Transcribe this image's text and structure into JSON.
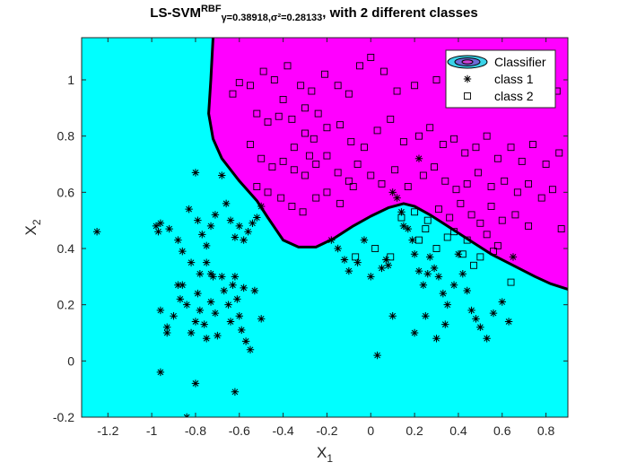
{
  "figure": {
    "title_main": "LS-SVM",
    "title_sup": "RBF",
    "title_sub": "γ=0.38918,σ²=0.28133",
    "title_rest": ", with 2 different classes"
  },
  "colors": {
    "region_class1": "#00ffff",
    "region_class2": "#ff00ff",
    "boundary": "#000000"
  },
  "chart_data": {
    "type": "scatter",
    "xlabel": "X",
    "xlabel_sub": "1",
    "ylabel": "X",
    "ylabel_sub": "2",
    "xlim": [
      -1.32,
      0.9
    ],
    "ylim": [
      -0.2,
      1.15
    ],
    "xticks": [
      -1.2,
      -1,
      -0.8,
      -0.6,
      -0.4,
      -0.2,
      0,
      0.2,
      0.4,
      0.6,
      0.8
    ],
    "yticks": [
      -0.2,
      0,
      0.2,
      0.4,
      0.6,
      0.8,
      1
    ],
    "xtick_labels": [
      "-1.2",
      "-1",
      "-0.8",
      "-0.6",
      "-0.4",
      "-0.2",
      "0",
      "0.2",
      "0.4",
      "0.6",
      "0.8"
    ],
    "ytick_labels": [
      "-0.2",
      "0",
      "0.2",
      "0.4",
      "0.6",
      "0.8",
      "1"
    ],
    "legend": {
      "location": "top-right",
      "entries": [
        "Classifier",
        "class 1",
        "class 2"
      ]
    },
    "decision_boundary": [
      [
        -0.72,
        1.15
      ],
      [
        -0.73,
        1.0
      ],
      [
        -0.74,
        0.88
      ],
      [
        -0.72,
        0.79
      ],
      [
        -0.68,
        0.72
      ],
      [
        -0.6,
        0.64
      ],
      [
        -0.52,
        0.57
      ],
      [
        -0.47,
        0.51
      ],
      [
        -0.4,
        0.43
      ],
      [
        -0.33,
        0.405
      ],
      [
        -0.25,
        0.405
      ],
      [
        -0.17,
        0.435
      ],
      [
        -0.08,
        0.48
      ],
      [
        0.0,
        0.515
      ],
      [
        0.08,
        0.545
      ],
      [
        0.15,
        0.56
      ],
      [
        0.2,
        0.55
      ],
      [
        0.27,
        0.52
      ],
      [
        0.35,
        0.48
      ],
      [
        0.45,
        0.43
      ],
      [
        0.55,
        0.38
      ],
      [
        0.65,
        0.34
      ],
      [
        0.75,
        0.3
      ],
      [
        0.82,
        0.275
      ],
      [
        0.9,
        0.255
      ]
    ],
    "series": [
      {
        "name": "class 1",
        "marker": "asterisk",
        "points": [
          [
            -1.25,
            0.46
          ],
          [
            -0.98,
            0.48
          ],
          [
            -0.97,
            0.46
          ],
          [
            -0.96,
            0.49
          ],
          [
            -0.92,
            0.47
          ],
          [
            -0.88,
            0.43
          ],
          [
            -0.86,
            0.39
          ],
          [
            -0.83,
            0.54
          ],
          [
            -0.8,
            0.67
          ],
          [
            -0.79,
            0.5
          ],
          [
            -0.77,
            0.45
          ],
          [
            -0.75,
            0.41
          ],
          [
            -0.73,
            0.48
          ],
          [
            -0.71,
            0.52
          ],
          [
            -0.68,
            0.66
          ],
          [
            -0.66,
            0.56
          ],
          [
            -0.64,
            0.5
          ],
          [
            -0.62,
            0.44
          ],
          [
            -0.6,
            0.48
          ],
          [
            -0.58,
            0.43
          ],
          [
            -0.56,
            0.46
          ],
          [
            -0.54,
            0.49
          ],
          [
            -0.52,
            0.51
          ],
          [
            -0.5,
            0.55
          ],
          [
            -0.96,
            0.18
          ],
          [
            -0.93,
            0.12
          ],
          [
            -0.93,
            0.1
          ],
          [
            -0.9,
            0.16
          ],
          [
            -0.88,
            0.27
          ],
          [
            -0.87,
            0.22
          ],
          [
            -0.86,
            0.27
          ],
          [
            -0.84,
            0.2
          ],
          [
            -0.82,
            0.1
          ],
          [
            -0.8,
            0.14
          ],
          [
            -0.79,
            0.24
          ],
          [
            -0.78,
            0.18
          ],
          [
            -0.76,
            0.13
          ],
          [
            -0.75,
            0.08
          ],
          [
            -0.73,
            0.21
          ],
          [
            -0.72,
            0.3
          ],
          [
            -0.71,
            0.17
          ],
          [
            -0.7,
            0.09
          ],
          [
            -0.68,
            0.3
          ],
          [
            -0.67,
            0.25
          ],
          [
            -0.65,
            0.2
          ],
          [
            -0.64,
            0.14
          ],
          [
            -0.63,
            0.27
          ],
          [
            -0.62,
            0.3
          ],
          [
            -0.61,
            0.22
          ],
          [
            -0.6,
            0.16
          ],
          [
            -0.59,
            0.11
          ],
          [
            -0.58,
            0.26
          ],
          [
            -0.57,
            0.07
          ],
          [
            -0.55,
            0.04
          ],
          [
            -0.53,
            0.25
          ],
          [
            -0.5,
            0.15
          ],
          [
            -0.96,
            -0.04
          ],
          [
            -0.8,
            -0.08
          ],
          [
            -0.62,
            -0.11
          ],
          [
            -0.84,
            -0.2
          ],
          [
            -0.82,
            0.35
          ],
          [
            -0.78,
            0.31
          ],
          [
            -0.75,
            0.35
          ],
          [
            -0.73,
            0.31
          ],
          [
            -0.18,
            0.43
          ],
          [
            -0.15,
            0.4
          ],
          [
            -0.12,
            0.36
          ],
          [
            -0.1,
            0.32
          ],
          [
            -0.06,
            0.35
          ],
          [
            -0.03,
            0.43
          ],
          [
            0.0,
            0.3
          ],
          [
            0.03,
            0.02
          ],
          [
            0.05,
            0.33
          ],
          [
            0.08,
            0.34
          ],
          [
            0.07,
            0.36
          ],
          [
            0.1,
            0.6
          ],
          [
            0.12,
            0.58
          ],
          [
            0.14,
            0.53
          ],
          [
            0.15,
            0.48
          ],
          [
            0.17,
            0.47
          ],
          [
            0.19,
            0.43
          ],
          [
            0.2,
            0.38
          ],
          [
            0.22,
            0.32
          ],
          [
            0.24,
            0.27
          ],
          [
            0.26,
            0.31
          ],
          [
            0.27,
            0.37
          ],
          [
            0.29,
            0.33
          ],
          [
            0.31,
            0.3
          ],
          [
            0.33,
            0.24
          ],
          [
            0.35,
            0.2
          ],
          [
            0.38,
            0.27
          ],
          [
            0.4,
            0.38
          ],
          [
            0.42,
            0.31
          ],
          [
            0.44,
            0.25
          ],
          [
            0.46,
            0.18
          ],
          [
            0.48,
            0.15
          ],
          [
            0.5,
            0.12
          ],
          [
            0.53,
            0.08
          ],
          [
            0.56,
            0.17
          ],
          [
            0.6,
            0.21
          ],
          [
            0.63,
            0.14
          ],
          [
            0.65,
            0.37
          ],
          [
            0.2,
            0.1
          ],
          [
            0.1,
            0.16
          ],
          [
            0.3,
            0.08
          ],
          [
            0.34,
            0.13
          ],
          [
            0.25,
            0.16
          ],
          [
            0.22,
            0.72
          ]
        ]
      },
      {
        "name": "class 2",
        "marker": "square",
        "points": [
          [
            -0.6,
            0.99
          ],
          [
            -0.55,
            0.98
          ],
          [
            -0.49,
            1.03
          ],
          [
            -0.44,
            1.0
          ],
          [
            -0.38,
            1.05
          ],
          [
            -0.32,
            0.98
          ],
          [
            -0.27,
            0.96
          ],
          [
            -0.21,
            1.02
          ],
          [
            -0.15,
            0.98
          ],
          [
            -0.1,
            0.95
          ],
          [
            -0.05,
            1.05
          ],
          [
            0.0,
            1.08
          ],
          [
            0.06,
            1.03
          ],
          [
            0.12,
            0.96
          ],
          [
            0.2,
            0.98
          ],
          [
            0.3,
            1.0
          ],
          [
            0.4,
            1.05
          ],
          [
            0.48,
            1.06
          ],
          [
            0.55,
            1.02
          ],
          [
            0.62,
            0.96
          ],
          [
            0.7,
            0.99
          ],
          [
            0.78,
            0.94
          ],
          [
            0.85,
            0.96
          ],
          [
            -0.63,
            0.95
          ],
          [
            -0.52,
            0.88
          ],
          [
            -0.47,
            0.85
          ],
          [
            -0.42,
            0.87
          ],
          [
            -0.36,
            0.86
          ],
          [
            -0.3,
            0.81
          ],
          [
            -0.26,
            0.79
          ],
          [
            -0.2,
            0.83
          ],
          [
            -0.14,
            0.84
          ],
          [
            -0.09,
            0.78
          ],
          [
            -0.03,
            0.76
          ],
          [
            0.03,
            0.82
          ],
          [
            0.09,
            0.86
          ],
          [
            0.15,
            0.78
          ],
          [
            0.22,
            0.8
          ],
          [
            0.27,
            0.83
          ],
          [
            0.33,
            0.77
          ],
          [
            0.38,
            0.79
          ],
          [
            0.43,
            0.74
          ],
          [
            0.48,
            0.76
          ],
          [
            0.53,
            0.8
          ],
          [
            0.58,
            0.72
          ],
          [
            0.64,
            0.76
          ],
          [
            0.69,
            0.71
          ],
          [
            0.74,
            0.77
          ],
          [
            0.8,
            0.7
          ],
          [
            0.86,
            0.74
          ],
          [
            -0.55,
            0.77
          ],
          [
            -0.5,
            0.72
          ],
          [
            -0.45,
            0.69
          ],
          [
            -0.4,
            0.71
          ],
          [
            -0.35,
            0.68
          ],
          [
            -0.3,
            0.66
          ],
          [
            -0.25,
            0.7
          ],
          [
            -0.2,
            0.73
          ],
          [
            -0.15,
            0.67
          ],
          [
            -0.1,
            0.64
          ],
          [
            -0.06,
            0.7
          ],
          [
            0.0,
            0.66
          ],
          [
            0.05,
            0.63
          ],
          [
            0.11,
            0.68
          ],
          [
            0.17,
            0.62
          ],
          [
            0.24,
            0.66
          ],
          [
            0.29,
            0.69
          ],
          [
            0.34,
            0.64
          ],
          [
            0.39,
            0.61
          ],
          [
            0.44,
            0.63
          ],
          [
            0.49,
            0.67
          ],
          [
            0.55,
            0.62
          ],
          [
            0.61,
            0.64
          ],
          [
            0.67,
            0.6
          ],
          [
            0.72,
            0.63
          ],
          [
            0.78,
            0.58
          ],
          [
            0.83,
            0.61
          ],
          [
            0.87,
            0.47
          ],
          [
            -0.52,
            0.62
          ],
          [
            -0.47,
            0.6
          ],
          [
            -0.41,
            0.58
          ],
          [
            -0.36,
            0.55
          ],
          [
            -0.31,
            0.53
          ],
          [
            -0.25,
            0.58
          ],
          [
            -0.2,
            0.6
          ],
          [
            -0.14,
            0.56
          ],
          [
            -0.08,
            0.62
          ],
          [
            0.14,
            0.51
          ],
          [
            0.2,
            0.53
          ],
          [
            0.26,
            0.5
          ],
          [
            0.31,
            0.54
          ],
          [
            0.36,
            0.51
          ],
          [
            0.41,
            0.56
          ],
          [
            0.46,
            0.52
          ],
          [
            0.5,
            0.49
          ],
          [
            0.55,
            0.55
          ],
          [
            0.6,
            0.5
          ],
          [
            0.66,
            0.52
          ],
          [
            0.72,
            0.48
          ],
          [
            0.47,
            0.34
          ],
          [
            0.53,
            0.45
          ],
          [
            0.58,
            0.41
          ],
          [
            0.44,
            0.43
          ],
          [
            0.38,
            0.46
          ],
          [
            0.64,
            0.28
          ],
          [
            0.02,
            0.4
          ],
          [
            0.09,
            0.37
          ],
          [
            -0.07,
            0.37
          ],
          [
            0.3,
            0.4
          ],
          [
            0.5,
            0.37
          ],
          [
            0.22,
            0.43
          ],
          [
            0.25,
            0.47
          ],
          [
            0.35,
            0.44
          ],
          [
            0.42,
            0.38
          ],
          [
            0.56,
            0.39
          ],
          [
            -0.3,
            0.9
          ],
          [
            -0.24,
            0.88
          ],
          [
            -0.4,
            0.93
          ],
          [
            -0.35,
            0.76
          ],
          [
            -0.28,
            0.73
          ]
        ]
      }
    ]
  }
}
